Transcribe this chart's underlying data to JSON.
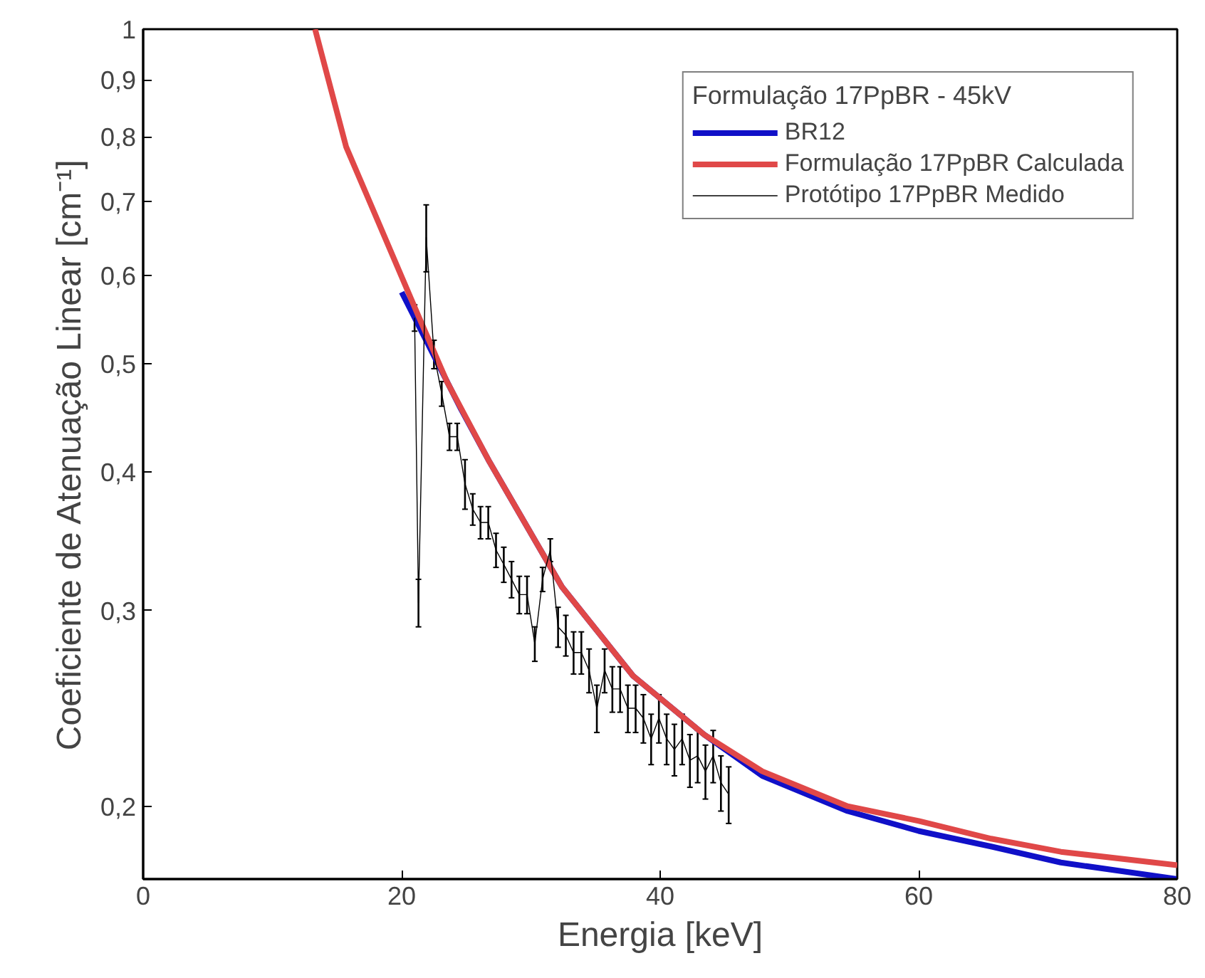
{
  "chart_data": {
    "type": "line",
    "xlabel": "Energia [keV]",
    "ylabel": "Coeficiente de Atenuação Linear [cm⁻¹]",
    "legend_title": "Formulação 17PpBR - 45kV",
    "log": "y",
    "xlim": [
      0,
      80
    ],
    "ylim": [
      0.172,
      1
    ],
    "xticks": [
      0,
      20,
      40,
      60,
      80
    ],
    "yticks": [
      {
        "value": 0.2,
        "label": "0,2"
      },
      {
        "value": 0.3,
        "label": "0,3"
      },
      {
        "value": 0.4,
        "label": "0,4"
      },
      {
        "value": 0.5,
        "label": "0,5"
      },
      {
        "value": 0.6,
        "label": "0,6"
      },
      {
        "value": 0.7,
        "label": "0,7"
      },
      {
        "value": 0.8,
        "label": "0,8"
      },
      {
        "value": 0.9,
        "label": "0,9"
      },
      {
        "value": 1,
        "label": "1"
      }
    ],
    "grid": false,
    "legend": "top right",
    "marker": "none",
    "line_style": "solid",
    "series": [
      {
        "name": "BR12",
        "color": "#1010c8",
        "x": [
          20,
          24.6,
          26.8,
          32.4,
          37.9,
          43.4,
          47.9,
          54.5,
          60,
          65.6,
          71,
          80
        ],
        "values": [
          0.58,
          0.455,
          0.408,
          0.315,
          0.262,
          0.232,
          0.213,
          0.198,
          0.19,
          0.184,
          0.178,
          0.172
        ]
      },
      {
        "name": "Formulação 17PpBR Calculada",
        "color": "#e04848",
        "x": [
          13.3,
          15.7,
          21.3,
          23.5,
          26.8,
          32.4,
          37.9,
          43.4,
          47.9,
          54.5,
          60,
          65.6,
          71,
          80
        ],
        "values": [
          1.0,
          0.784,
          0.552,
          0.482,
          0.408,
          0.315,
          0.262,
          0.232,
          0.215,
          0.2,
          0.194,
          0.187,
          0.182,
          0.177
        ]
      },
      {
        "name": "Protótipo 17PpBR Medido",
        "color": "#000000",
        "x": [
          21.0,
          21.3,
          21.9,
          22.5,
          23.1,
          23.7,
          24.3,
          24.9,
          25.5,
          26.1,
          26.7,
          27.3,
          27.9,
          28.5,
          29.1,
          29.7,
          30.3,
          30.9,
          31.5,
          32.1,
          32.7,
          33.3,
          33.9,
          34.5,
          35.1,
          35.7,
          36.3,
          36.9,
          37.5,
          38.1,
          38.7,
          39.3,
          39.9,
          40.5,
          41.1,
          41.7,
          42.3,
          42.9,
          43.5,
          44.1,
          44.7,
          45.3
        ],
        "values": [
          0.55,
          0.305,
          0.65,
          0.51,
          0.47,
          0.43,
          0.43,
          0.39,
          0.37,
          0.36,
          0.36,
          0.34,
          0.33,
          0.32,
          0.31,
          0.31,
          0.28,
          0.32,
          0.34,
          0.29,
          0.285,
          0.275,
          0.275,
          0.265,
          0.245,
          0.265,
          0.255,
          0.255,
          0.245,
          0.245,
          0.24,
          0.23,
          0.24,
          0.23,
          0.225,
          0.23,
          0.22,
          0.222,
          0.215,
          0.222,
          0.21,
          0.205
        ],
        "errors": [
          0.015,
          0.015,
          0.045,
          0.015,
          0.012,
          0.012,
          0.012,
          0.02,
          0.012,
          0.012,
          0.012,
          0.012,
          0.012,
          0.012,
          0.012,
          0.012,
          0.01,
          0.008,
          0.008,
          0.012,
          0.012,
          0.012,
          0.012,
          0.012,
          0.012,
          0.012,
          0.012,
          0.012,
          0.012,
          0.012,
          0.012,
          0.012,
          0.012,
          0.012,
          0.012,
          0.012,
          0.012,
          0.012,
          0.012,
          0.012,
          0.012,
          0.012
        ]
      }
    ]
  }
}
